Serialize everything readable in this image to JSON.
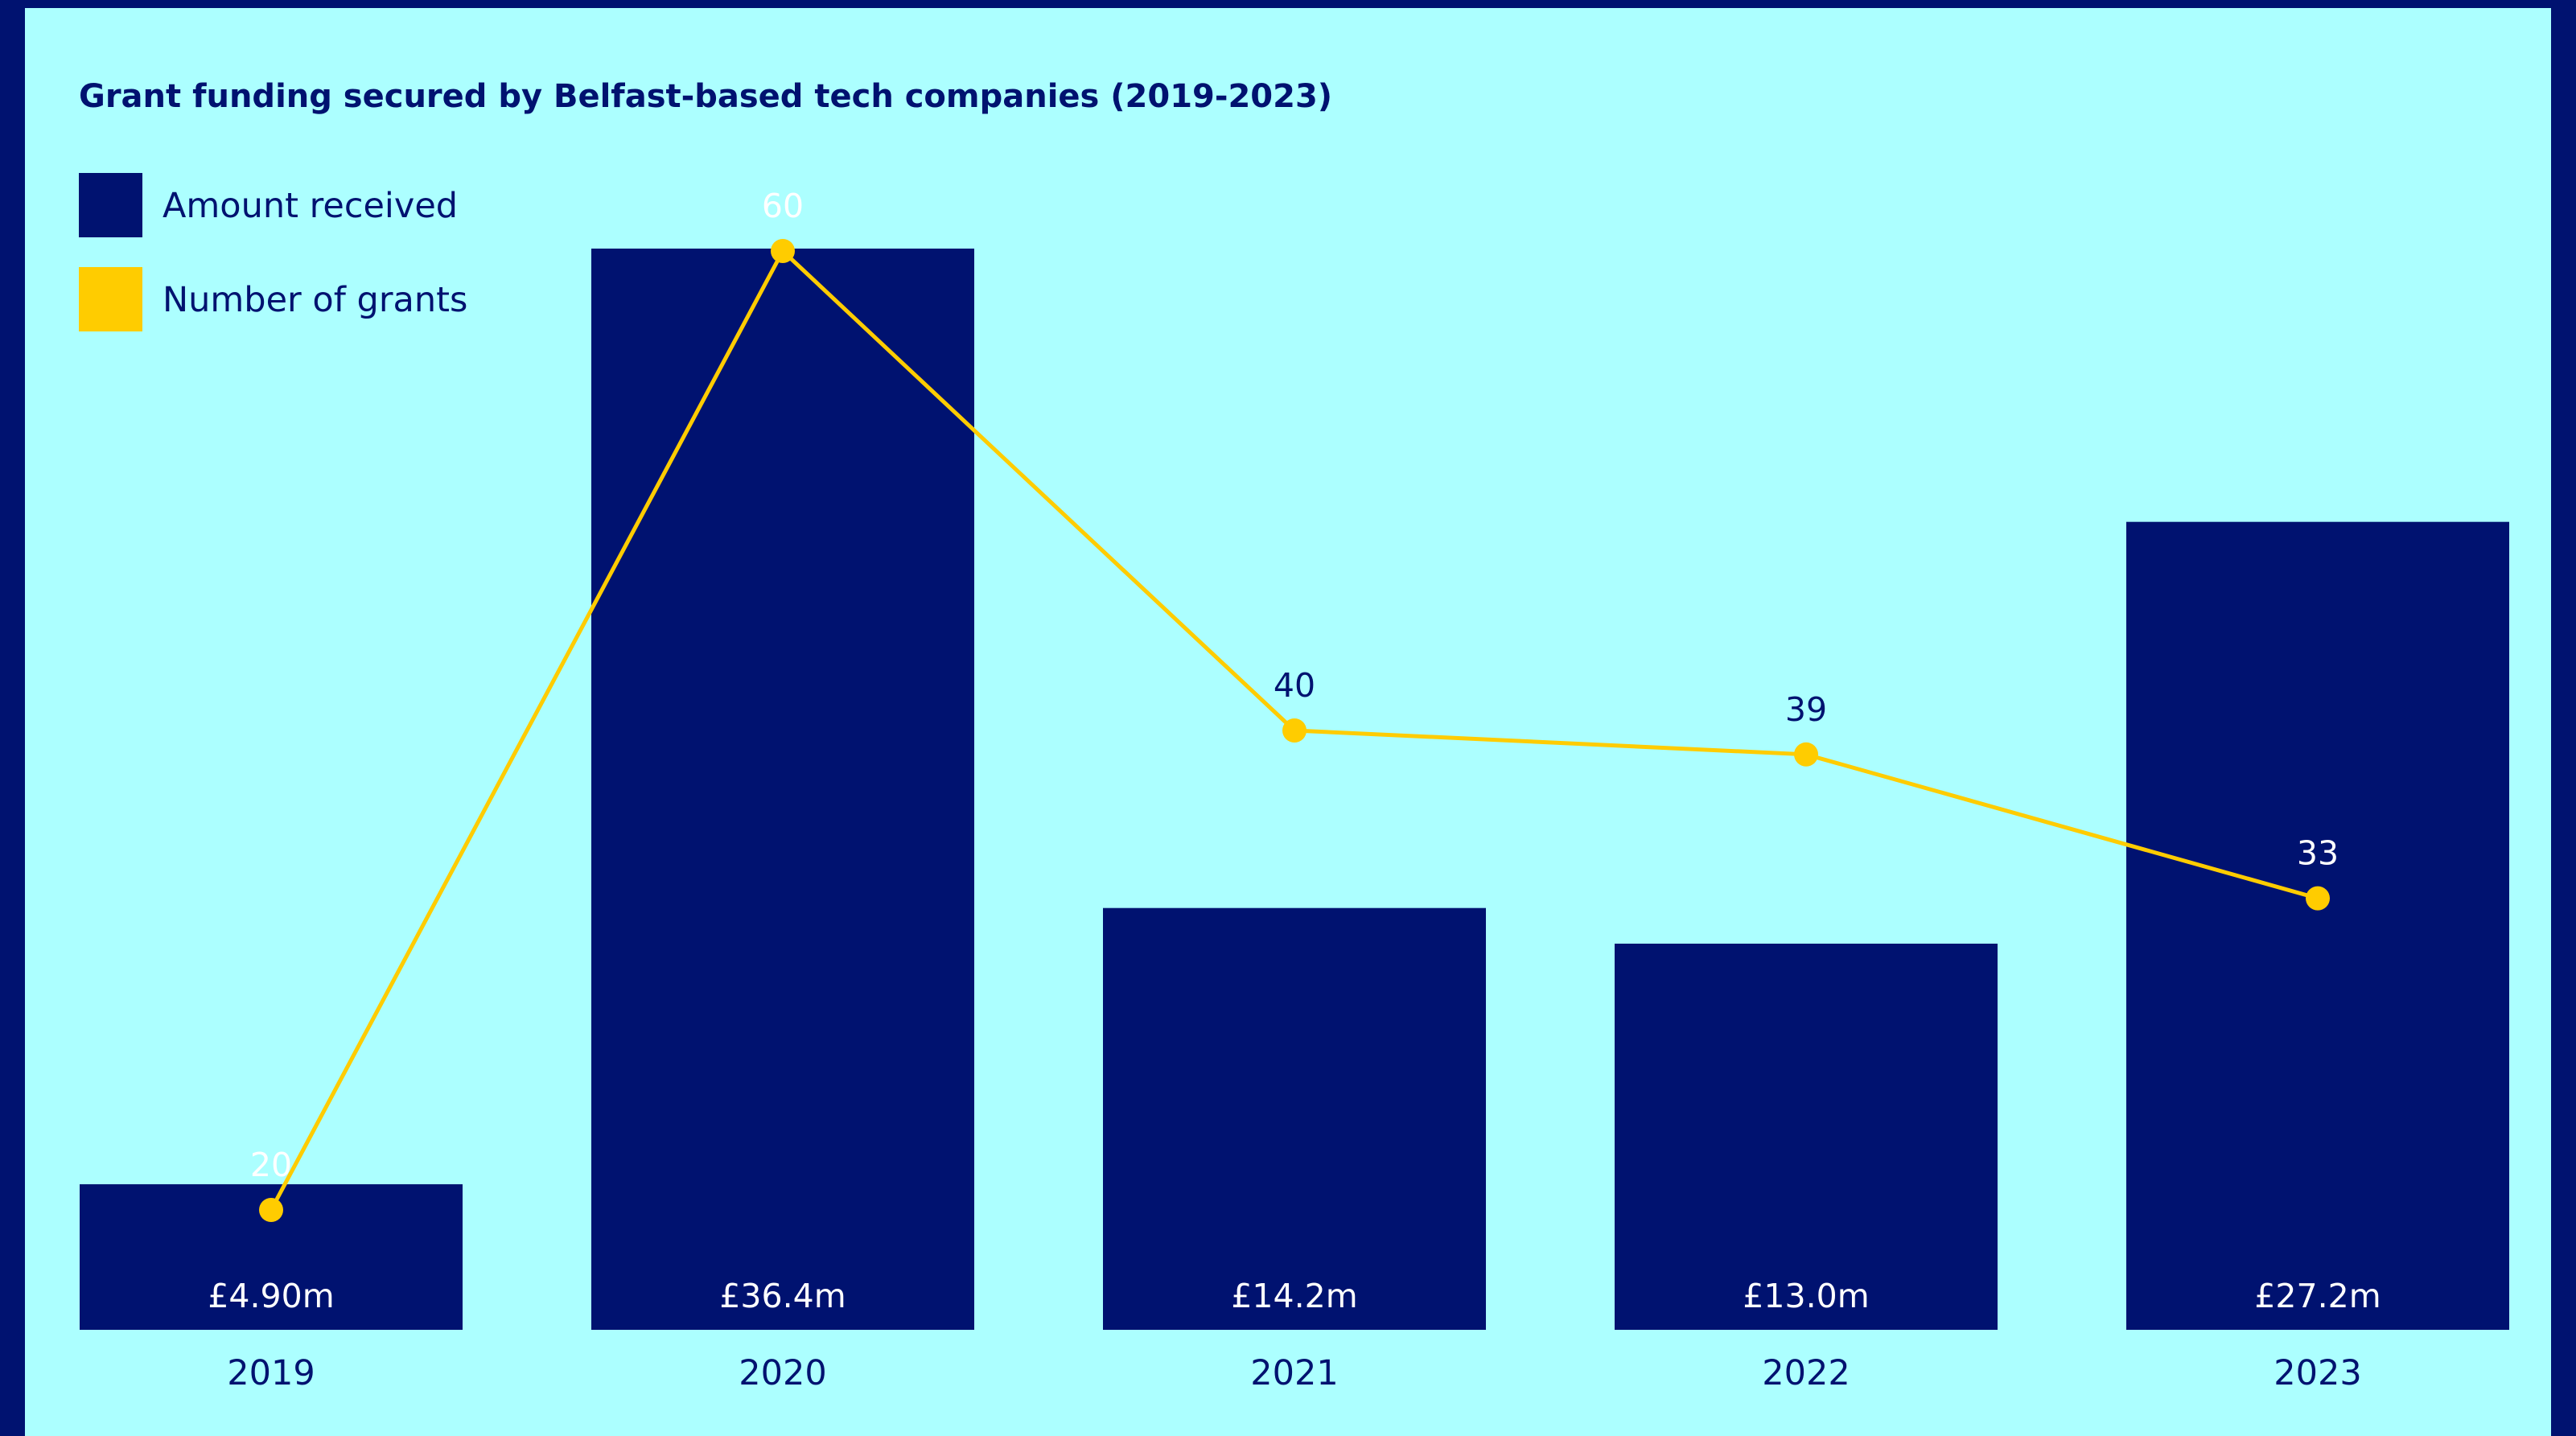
{
  "chart_data": {
    "type": "bar",
    "title": "Grant funding secured by Belfast-based tech companies (2019-2023)",
    "categories": [
      "2019",
      "2020",
      "2021",
      "2022",
      "2023"
    ],
    "series": [
      {
        "name": "Amount received",
        "type": "bar",
        "values": [
          4.9,
          36.4,
          14.2,
          13.0,
          27.2
        ],
        "labels": [
          "£4.90m",
          "£36.4m",
          "£14.2m",
          "£13.0m",
          "£27.2m"
        ],
        "unit": "£m",
        "color": "#001270"
      },
      {
        "name": "Number of grants",
        "type": "line",
        "values": [
          20,
          60,
          40,
          39,
          33
        ],
        "labels": [
          "20",
          "60",
          "40",
          "39",
          "33"
        ],
        "color": "#ffcc00"
      }
    ],
    "legend_position": "top-left",
    "grid": false
  },
  "colors": {
    "background": "#acffff",
    "frame": "#001270",
    "text": "#001270",
    "bar": "#001270",
    "line": "#ffcc00",
    "bar_label": "#ffffff"
  }
}
